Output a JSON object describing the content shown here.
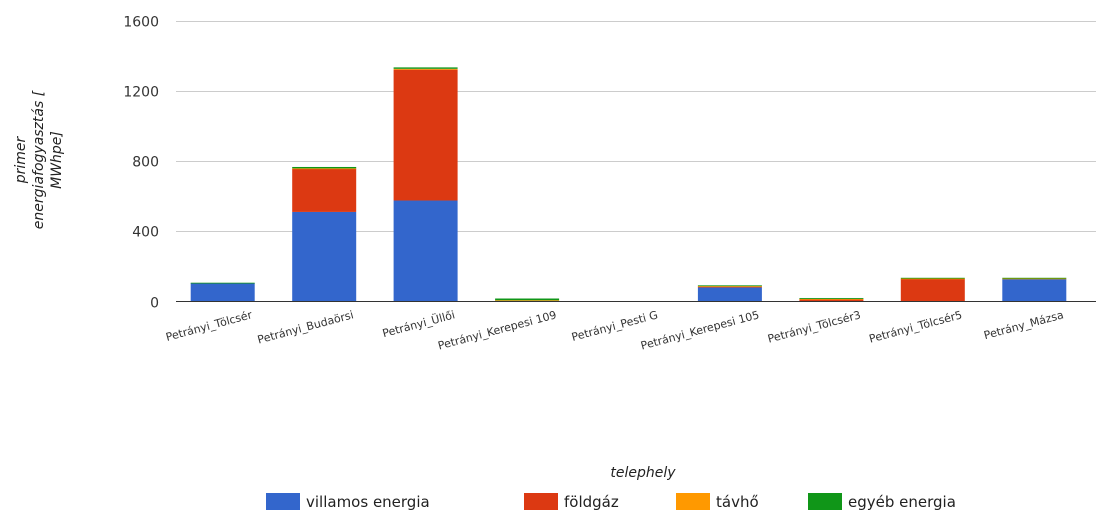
{
  "chart_data": {
    "type": "bar",
    "stacked": true,
    "categories": [
      "Petrányi_Tölcsér",
      "Petrányi_Budaörsi",
      "Petrányi_Üllői",
      "Petrányi_Kerepesi 109",
      "Petrányi_Pesti G",
      "Petrányi_Kerepesi 105",
      "Petrányi_Tölcsér3",
      "Petrányi_Tölcsér5",
      "Petrány_Mázsa"
    ],
    "series": [
      {
        "name": "villamos energia",
        "color": "#3366cc",
        "values": [
          105,
          510,
          575,
          5,
          0,
          80,
          2,
          0,
          128
        ]
      },
      {
        "name": "földgáz",
        "color": "#dc3912",
        "values": [
          0,
          245,
          745,
          0,
          0,
          5,
          10,
          128,
          0
        ]
      },
      {
        "name": "távhő",
        "color": "#ff9900",
        "values": [
          0,
          3,
          5,
          2,
          0,
          3,
          3,
          3,
          3
        ]
      },
      {
        "name": "egyéb energia",
        "color": "#109618",
        "values": [
          2,
          8,
          8,
          10,
          0,
          4,
          5,
          4,
          4
        ]
      }
    ],
    "ylabel_lines": [
      "primer",
      "energiafogyasztás [",
      "MWhpe]"
    ],
    "xlabel": "telephely",
    "ylim": [
      0,
      1600
    ],
    "yticks": [
      0,
      400,
      800,
      1200,
      1600
    ],
    "grid": true,
    "legend_position": "bottom"
  }
}
